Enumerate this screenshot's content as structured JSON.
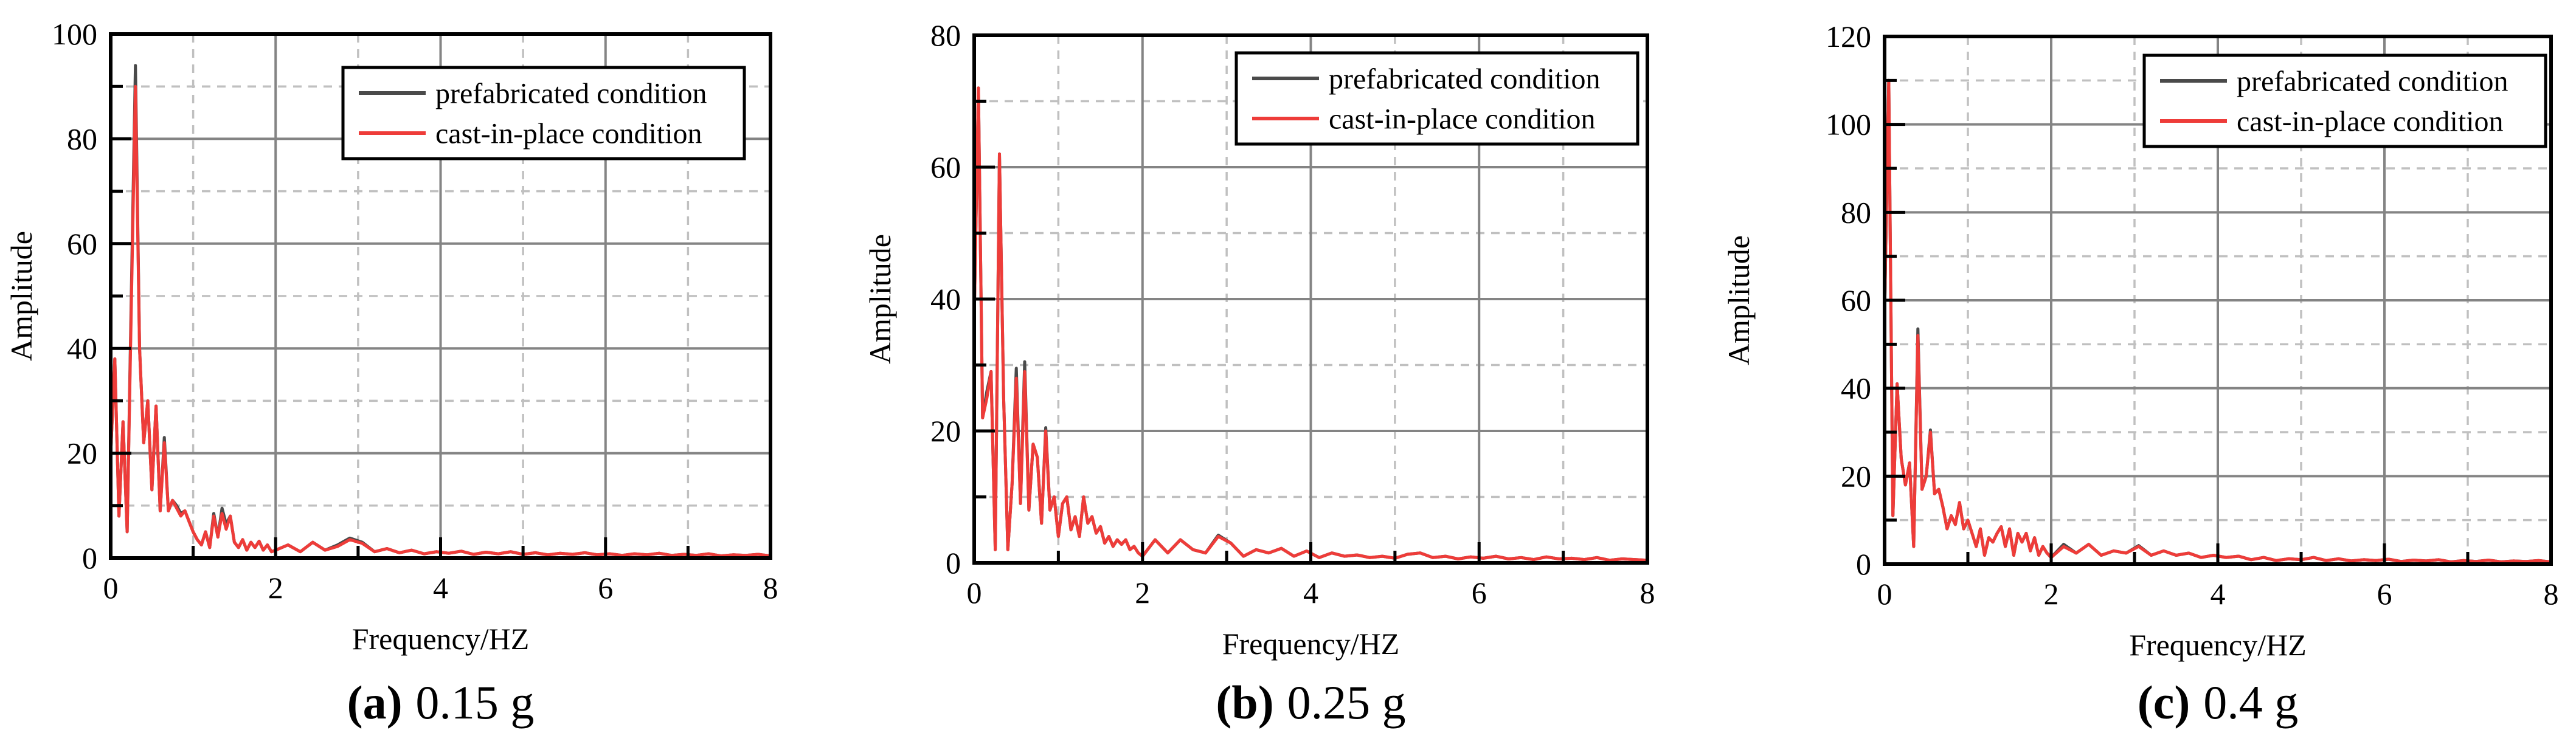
{
  "palette": {
    "background": "#ffffff",
    "prefabricated": "#4a4a4a",
    "cast_in_place": "#ee3c39",
    "grid_major": "#848484",
    "grid_minor": "#c0c0c0",
    "axis": "#000000",
    "legend_border": "#000000",
    "legend_fill": "#ffffff"
  },
  "chart_data": [
    {
      "type": "line",
      "caption_label": "(a)",
      "caption_value": "0.15 g",
      "xlabel": "Frequency/HZ",
      "ylabel": "Amplitude",
      "xlim": [
        0,
        8
      ],
      "ylim": [
        0,
        100
      ],
      "x_ticks": [
        0,
        2,
        4,
        6,
        8
      ],
      "y_ticks": [
        0,
        20,
        40,
        60,
        80,
        100
      ],
      "x_minor": [
        1,
        3,
        5,
        7
      ],
      "y_minor": [
        10,
        30,
        50,
        70,
        90
      ],
      "grid": true,
      "legend_position": "top-right",
      "x": [
        0,
        0.05,
        0.1,
        0.15,
        0.2,
        0.25,
        0.3,
        0.35,
        0.4,
        0.45,
        0.5,
        0.55,
        0.6,
        0.65,
        0.7,
        0.75,
        0.8,
        0.85,
        0.9,
        0.95,
        1,
        1.05,
        1.1,
        1.15,
        1.2,
        1.25,
        1.3,
        1.35,
        1.4,
        1.45,
        1.5,
        1.55,
        1.6,
        1.65,
        1.7,
        1.75,
        1.8,
        1.85,
        1.9,
        1.95,
        2,
        2.15,
        2.3,
        2.45,
        2.6,
        2.75,
        2.9,
        3.05,
        3.2,
        3.35,
        3.5,
        3.65,
        3.8,
        3.95,
        4.1,
        4.25,
        4.4,
        4.55,
        4.7,
        4.85,
        5,
        5.15,
        5.3,
        5.45,
        5.6,
        5.75,
        5.9,
        6.05,
        6.2,
        6.35,
        6.5,
        6.65,
        6.8,
        6.95,
        7.1,
        7.25,
        7.4,
        7.55,
        7.7,
        7.85,
        8
      ],
      "series": [
        {
          "name": "prefabricated condition",
          "color": "prefabricated",
          "y": [
            20,
            38,
            8,
            26,
            5,
            50,
            94,
            40,
            22,
            30,
            13,
            29,
            9,
            23,
            9,
            11,
            10,
            8.5,
            9,
            7,
            5,
            3.5,
            2.5,
            5,
            2,
            8.5,
            4,
            9.5,
            6.5,
            8,
            3,
            2,
            3.5,
            1.5,
            3,
            2,
            3.2,
            1.5,
            2.5,
            1.2,
            1.5,
            2.5,
            1.2,
            3,
            1.5,
            2.5,
            3.8,
            3,
            1.2,
            1.8,
            1,
            1.5,
            0.8,
            1.2,
            0.9,
            1.3,
            0.7,
            1.1,
            0.8,
            1.2,
            0.7,
            1,
            0.6,
            0.9,
            0.7,
            1,
            0.6,
            0.8,
            0.5,
            0.8,
            0.6,
            0.9,
            0.5,
            0.7,
            0.5,
            0.8,
            0.4,
            0.6,
            0.5,
            0.7,
            0.4
          ]
        },
        {
          "name": "cast-in-place condition",
          "color": "cast_in_place",
          "y": [
            20,
            38,
            8,
            26,
            5,
            48,
            90,
            40,
            22,
            30,
            13,
            29,
            9,
            22,
            9,
            11,
            9.5,
            8,
            9,
            7,
            5,
            3.5,
            2.5,
            5,
            2,
            8,
            4,
            8.5,
            5.5,
            8,
            3,
            2,
            3.5,
            1.5,
            3,
            2,
            3.2,
            1.5,
            2.5,
            1.2,
            1.5,
            2.5,
            1.2,
            3,
            1.5,
            2.2,
            3.5,
            2.8,
            1.2,
            1.8,
            1,
            1.5,
            0.8,
            1.2,
            0.9,
            1.3,
            0.7,
            1.1,
            0.8,
            1.2,
            0.7,
            1,
            0.6,
            0.9,
            0.7,
            1,
            0.6,
            0.8,
            0.5,
            0.8,
            0.6,
            0.9,
            0.5,
            0.7,
            0.5,
            0.8,
            0.4,
            0.6,
            0.5,
            0.7,
            0.4
          ]
        }
      ]
    },
    {
      "type": "line",
      "caption_label": "(b)",
      "caption_value": "0.25 g",
      "xlabel": "Frequency/HZ",
      "ylabel": "Amplitude",
      "xlim": [
        0,
        8
      ],
      "ylim": [
        0,
        80
      ],
      "x_ticks": [
        0,
        2,
        4,
        6,
        8
      ],
      "y_ticks": [
        0,
        20,
        40,
        60,
        80
      ],
      "x_minor": [
        1,
        3,
        5,
        7
      ],
      "y_minor": [
        10,
        30,
        50,
        70
      ],
      "grid": true,
      "legend_position": "top-right",
      "x": [
        0,
        0.05,
        0.1,
        0.15,
        0.2,
        0.25,
        0.3,
        0.35,
        0.4,
        0.45,
        0.5,
        0.55,
        0.6,
        0.65,
        0.7,
        0.75,
        0.8,
        0.85,
        0.9,
        0.95,
        1,
        1.05,
        1.1,
        1.15,
        1.2,
        1.25,
        1.3,
        1.35,
        1.4,
        1.45,
        1.5,
        1.55,
        1.6,
        1.65,
        1.7,
        1.75,
        1.8,
        1.85,
        1.9,
        1.95,
        2,
        2.15,
        2.3,
        2.45,
        2.6,
        2.75,
        2.9,
        3.05,
        3.2,
        3.35,
        3.5,
        3.65,
        3.8,
        3.95,
        4.1,
        4.25,
        4.4,
        4.55,
        4.7,
        4.85,
        5,
        5.15,
        5.3,
        5.45,
        5.6,
        5.75,
        5.9,
        6.05,
        6.2,
        6.35,
        6.5,
        6.65,
        6.8,
        6.95,
        7.1,
        7.25,
        7.4,
        7.55,
        7.7,
        7.85,
        8
      ],
      "series": [
        {
          "name": "prefabricated condition",
          "color": "prefabricated",
          "y": [
            37,
            72,
            22,
            26,
            29,
            2,
            62,
            25,
            2,
            12,
            29.5,
            9,
            30.5,
            8,
            18,
            16,
            6,
            20.5,
            8,
            10,
            4,
            9,
            10,
            5,
            7,
            4,
            10,
            6,
            7,
            4.5,
            5.5,
            3,
            4,
            2.5,
            3.5,
            2.8,
            3.5,
            2,
            2.5,
            1.5,
            1,
            3.5,
            1.5,
            3.5,
            2,
            1.5,
            4.2,
            3,
            1,
            2,
            1.5,
            2.2,
            1,
            1.8,
            0.8,
            1.5,
            1,
            1.2,
            0.8,
            1,
            0.7,
            1.3,
            1.5,
            0.8,
            1,
            0.6,
            0.9,
            0.7,
            1,
            0.6,
            0.8,
            0.5,
            0.9,
            0.6,
            0.7,
            0.5,
            0.8,
            0.4,
            0.6,
            0.5,
            0.4
          ]
        },
        {
          "name": "cast-in-place condition",
          "color": "cast_in_place",
          "y": [
            37,
            72,
            22,
            25,
            29,
            2,
            62,
            25,
            2,
            12,
            28,
            9,
            29,
            8,
            18,
            16,
            6,
            20,
            8,
            10,
            4,
            9,
            10,
            5,
            7,
            4,
            10,
            6,
            7,
            4.5,
            5.5,
            3,
            4,
            2.5,
            3.5,
            2.8,
            3.5,
            2,
            2.5,
            1.5,
            1,
            3.5,
            1.5,
            3.5,
            2,
            1.5,
            4,
            3,
            1,
            2,
            1.5,
            2.2,
            1,
            1.8,
            0.8,
            1.5,
            1,
            1.2,
            0.8,
            1,
            0.7,
            1.3,
            1.5,
            0.8,
            1,
            0.6,
            0.9,
            0.7,
            1,
            0.6,
            0.8,
            0.5,
            0.9,
            0.6,
            0.7,
            0.5,
            0.8,
            0.4,
            0.6,
            0.5,
            0.4
          ]
        }
      ]
    },
    {
      "type": "line",
      "caption_label": "(c)",
      "caption_value": "0.4 g",
      "xlabel": "Frequency/HZ",
      "ylabel": "Amplitude",
      "xlim": [
        0,
        8
      ],
      "ylim": [
        0,
        120
      ],
      "x_ticks": [
        0,
        2,
        4,
        6,
        8
      ],
      "y_ticks": [
        0,
        20,
        40,
        60,
        80,
        100,
        120
      ],
      "x_minor": [
        1,
        3,
        5,
        7
      ],
      "y_minor": [
        10,
        30,
        50,
        70,
        90,
        110
      ],
      "grid": true,
      "legend_position": "top-right",
      "x": [
        0,
        0.05,
        0.1,
        0.15,
        0.2,
        0.25,
        0.3,
        0.35,
        0.4,
        0.45,
        0.5,
        0.55,
        0.6,
        0.65,
        0.7,
        0.75,
        0.8,
        0.85,
        0.9,
        0.95,
        1,
        1.05,
        1.1,
        1.15,
        1.2,
        1.25,
        1.3,
        1.35,
        1.4,
        1.45,
        1.5,
        1.55,
        1.6,
        1.65,
        1.7,
        1.75,
        1.8,
        1.85,
        1.9,
        1.95,
        2,
        2.15,
        2.3,
        2.45,
        2.6,
        2.75,
        2.9,
        3.05,
        3.2,
        3.35,
        3.5,
        3.65,
        3.8,
        3.95,
        4.1,
        4.25,
        4.4,
        4.55,
        4.7,
        4.85,
        5,
        5.15,
        5.3,
        5.45,
        5.6,
        5.75,
        5.9,
        6.05,
        6.2,
        6.35,
        6.5,
        6.65,
        6.8,
        6.95,
        7.1,
        7.25,
        7.4,
        7.55,
        7.7,
        7.85,
        8
      ],
      "series": [
        {
          "name": "prefabricated condition",
          "color": "prefabricated",
          "y": [
            57,
            110,
            11,
            41,
            24,
            18,
            23,
            4,
            53.5,
            17,
            20,
            30.5,
            16,
            17,
            13,
            8,
            11,
            9,
            14,
            8,
            10,
            7,
            4,
            8,
            2,
            6,
            5,
            7,
            8.5,
            4,
            8,
            2,
            7,
            5,
            7,
            3,
            6,
            2,
            4,
            2.5,
            1.5,
            4.5,
            2.5,
            4.5,
            2,
            3,
            2.5,
            4.2,
            2,
            3,
            2,
            2.5,
            1.5,
            2,
            1.5,
            1.8,
            1,
            1.5,
            0.8,
            1.2,
            1,
            1.5,
            0.8,
            1.2,
            0.7,
            1,
            0.8,
            1.1,
            0.6,
            0.9,
            0.7,
            1,
            0.5,
            0.8,
            0.6,
            0.9,
            0.5,
            0.7,
            0.6,
            0.8,
            0.5
          ]
        },
        {
          "name": "cast-in-place condition",
          "color": "cast_in_place",
          "y": [
            57,
            110,
            11,
            41,
            24,
            18,
            23,
            4,
            52,
            17,
            20,
            30,
            16,
            17,
            13,
            8,
            11,
            9,
            14,
            8,
            10,
            7,
            4,
            8,
            2,
            6,
            5,
            7,
            8.5,
            4,
            8,
            2,
            7,
            5,
            7,
            3,
            6,
            2,
            4,
            2.5,
            1.5,
            4,
            2.5,
            4.5,
            2,
            3,
            2.5,
            4,
            2,
            3,
            2,
            2.5,
            1.5,
            2,
            1.5,
            1.8,
            1,
            1.5,
            0.8,
            1.2,
            1,
            1.5,
            0.8,
            1.2,
            0.7,
            1,
            0.8,
            1.1,
            0.6,
            0.9,
            0.7,
            1,
            0.5,
            0.8,
            0.6,
            0.9,
            0.5,
            0.7,
            0.6,
            0.8,
            0.5
          ]
        }
      ]
    }
  ]
}
